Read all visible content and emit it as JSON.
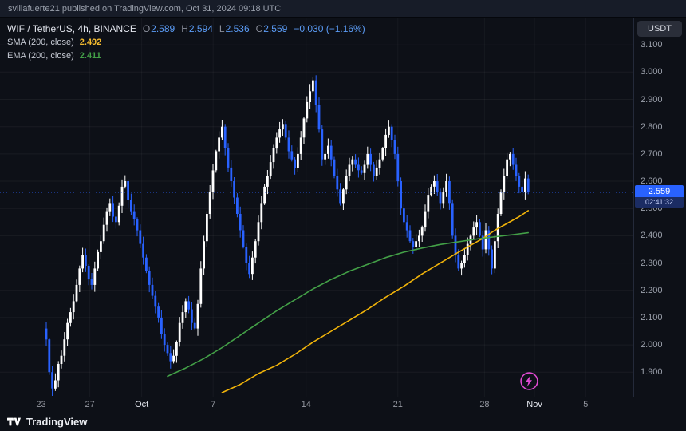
{
  "attribution": "svillafuerte21 published on TradingView.com, Oct 31, 2024 09:18 UTC",
  "legend": {
    "symbol": "WIF / TetherUS, 4h, BINANCE",
    "ohlc": [
      {
        "label": "O",
        "value": "2.589"
      },
      {
        "label": "H",
        "value": "2.594"
      },
      {
        "label": "L",
        "value": "2.536"
      },
      {
        "label": "C",
        "value": "2.559"
      }
    ],
    "change": "−0.030 (−1.16%)",
    "indicators": [
      {
        "label": "SMA (200, close)",
        "value": "2.492",
        "color": "#f3ba2f"
      },
      {
        "label": "EMA (200, close)",
        "value": "2.411",
        "color": "#43a047"
      }
    ]
  },
  "price_scale": {
    "currency": "USDT",
    "last_price_label": "2.559",
    "countdown": "02:41:32"
  },
  "footer": {
    "brand": "TradingView"
  },
  "chart_data": {
    "type": "candlestick",
    "title": "WIF / TetherUS, 4h, BINANCE",
    "interval": "4h",
    "last_price": 2.559,
    "colors": {
      "up": "#ffffff",
      "down": "#2962ff",
      "accent": "#2962ff"
    },
    "price_axis": {
      "min": 1.81,
      "max": 3.2,
      "ticks": [
        "3.100",
        "3.000",
        "2.900",
        "2.800",
        "2.700",
        "2.600",
        "2.500",
        "2.400",
        "2.300",
        "2.200",
        "2.100",
        "2.000",
        "1.900"
      ]
    },
    "time_axis": [
      {
        "label": "23",
        "x": 0.065,
        "em": false
      },
      {
        "label": "27",
        "x": 0.142,
        "em": false
      },
      {
        "label": "Oct",
        "x": 0.224,
        "em": true
      },
      {
        "label": "7",
        "x": 0.337,
        "em": false
      },
      {
        "label": "14",
        "x": 0.484,
        "em": false
      },
      {
        "label": "21",
        "x": 0.629,
        "em": false
      },
      {
        "label": "28",
        "x": 0.766,
        "em": false
      },
      {
        "label": "Nov",
        "x": 0.845,
        "em": true
      },
      {
        "label": "5",
        "x": 0.926,
        "em": false
      }
    ],
    "layout": {
      "x0": 58,
      "dx": 3.8,
      "grid": true,
      "legend_position": "top-left"
    },
    "candles": {
      "first_open": 2.06,
      "closes": [
        2.02,
        1.9,
        1.84,
        1.87,
        1.93,
        1.96,
        2.02,
        2.08,
        2.12,
        2.16,
        2.22,
        2.28,
        2.33,
        2.29,
        2.24,
        2.22,
        2.28,
        2.34,
        2.38,
        2.44,
        2.49,
        2.52,
        2.47,
        2.45,
        2.51,
        2.58,
        2.6,
        2.53,
        2.49,
        2.46,
        2.42,
        2.37,
        2.32,
        2.27,
        2.22,
        2.18,
        2.14,
        2.1,
        2.04,
        2.0,
        1.97,
        1.94,
        1.96,
        2.01,
        2.08,
        2.12,
        2.16,
        2.13,
        2.08,
        2.06,
        2.15,
        2.28,
        2.38,
        2.48,
        2.56,
        2.64,
        2.71,
        2.76,
        2.8,
        2.72,
        2.65,
        2.6,
        2.54,
        2.48,
        2.42,
        2.36,
        2.3,
        2.26,
        2.32,
        2.38,
        2.45,
        2.52,
        2.58,
        2.62,
        2.67,
        2.72,
        2.76,
        2.79,
        2.81,
        2.76,
        2.71,
        2.68,
        2.65,
        2.7,
        2.76,
        2.83,
        2.89,
        2.93,
        2.97,
        2.88,
        2.79,
        2.68,
        2.7,
        2.73,
        2.68,
        2.62,
        2.57,
        2.52,
        2.57,
        2.62,
        2.66,
        2.68,
        2.66,
        2.64,
        2.63,
        2.66,
        2.7,
        2.66,
        2.62,
        2.65,
        2.68,
        2.72,
        2.77,
        2.8,
        2.75,
        2.7,
        2.6,
        2.5,
        2.45,
        2.42,
        2.38,
        2.36,
        2.38,
        2.4,
        2.43,
        2.49,
        2.55,
        2.58,
        2.6,
        2.56,
        2.52,
        2.56,
        2.6,
        2.52,
        2.4,
        2.33,
        2.28,
        2.3,
        2.33,
        2.37,
        2.4,
        2.43,
        2.45,
        2.4,
        2.35,
        2.42,
        2.35,
        2.28,
        2.38,
        2.48,
        2.56,
        2.62,
        2.68,
        2.7,
        2.66,
        2.62,
        2.58,
        2.56,
        2.61,
        2.559
      ]
    },
    "series": [
      {
        "name": "SMA (200, close)",
        "value": 2.492,
        "color": "#f0b30a",
        "points": [
          [
            58,
            1.825
          ],
          [
            64,
            1.855
          ],
          [
            70,
            1.895
          ],
          [
            76,
            1.925
          ],
          [
            82,
            1.965
          ],
          [
            88,
            2.01
          ],
          [
            94,
            2.05
          ],
          [
            100,
            2.09
          ],
          [
            106,
            2.13
          ],
          [
            112,
            2.175
          ],
          [
            118,
            2.215
          ],
          [
            124,
            2.26
          ],
          [
            130,
            2.3
          ],
          [
            136,
            2.34
          ],
          [
            140,
            2.365
          ],
          [
            144,
            2.39
          ],
          [
            148,
            2.42
          ],
          [
            152,
            2.445
          ],
          [
            156,
            2.47
          ],
          [
            159,
            2.492
          ]
        ]
      },
      {
        "name": "EMA (200, close)",
        "value": 2.411,
        "color": "#43a047",
        "points": [
          [
            40,
            1.885
          ],
          [
            46,
            1.915
          ],
          [
            52,
            1.95
          ],
          [
            58,
            1.99
          ],
          [
            64,
            2.035
          ],
          [
            70,
            2.08
          ],
          [
            76,
            2.125
          ],
          [
            82,
            2.165
          ],
          [
            88,
            2.205
          ],
          [
            94,
            2.24
          ],
          [
            100,
            2.27
          ],
          [
            106,
            2.295
          ],
          [
            112,
            2.32
          ],
          [
            118,
            2.34
          ],
          [
            124,
            2.355
          ],
          [
            130,
            2.368
          ],
          [
            136,
            2.378
          ],
          [
            142,
            2.388
          ],
          [
            148,
            2.396
          ],
          [
            154,
            2.404
          ],
          [
            159,
            2.411
          ]
        ]
      }
    ]
  }
}
